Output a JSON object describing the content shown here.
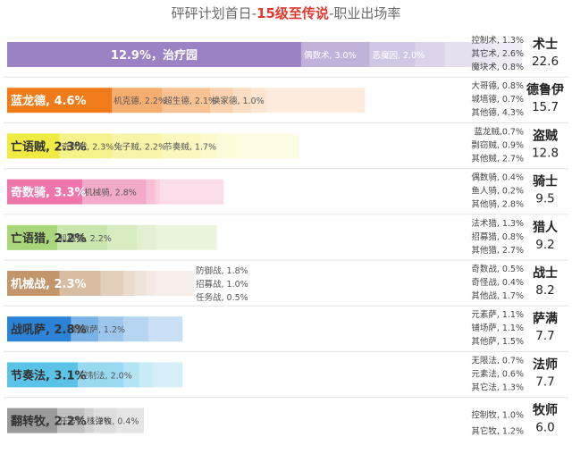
{
  "title": {
    "prefix": "砰砰计划首日-",
    "highlight": "15级至传说",
    "suffix": "-职业出场率"
  },
  "chart_data": {
    "type": "bar",
    "title": "砰砰计划首日-15级至传说-职业出场率",
    "unit": "%",
    "classes": [
      {
        "name": "术士",
        "rate": "22.6",
        "color": "#9b82c4",
        "decks": [
          {
            "label": "12.9%，治疗园",
            "value": 12.9
          },
          {
            "label": "偶数术, 3.0%",
            "value": 3.0
          },
          {
            "label": "恶魔园, 2.0%",
            "value": 2.0
          },
          {
            "label": "",
            "value": 1.3
          },
          {
            "label": "",
            "value": 1.3
          },
          {
            "label": "",
            "value": 0.8
          },
          {
            "label": "",
            "value": 1.3
          }
        ],
        "side": [
          {
            "label": "控制术, 1.3%"
          },
          {
            "label": "其它术, 2.6%"
          },
          {
            "label": "魔块术, 0.8%"
          }
        ]
      },
      {
        "name": "德鲁伊",
        "rate": "15.7",
        "color": "#f07b18",
        "decks": [
          {
            "label": "蓝龙德, 4.6%",
            "value": 4.6
          },
          {
            "label": "机克德, 2.2%",
            "value": 2.2
          },
          {
            "label": "超生德, 2.1%",
            "value": 2.1
          },
          {
            "label": "换家德, 1.0%",
            "value": 1.0
          },
          {
            "label": "",
            "value": 0.8
          },
          {
            "label": "",
            "value": 0.7
          },
          {
            "label": "",
            "value": 4.3
          }
        ],
        "side": [
          {
            "label": "大哥德, 0.8%"
          },
          {
            "label": "城墙德, 0.7%"
          },
          {
            "label": "其他德, 4.3%"
          }
        ]
      },
      {
        "name": "盗贼",
        "rate": "12.8",
        "color": "#f0ea44",
        "decks": [
          {
            "label": "亡语贼, 2.3%",
            "value": 2.3
          },
          {
            "label": "奇数贼, 2.3%",
            "value": 2.3
          },
          {
            "label": "兔子贼, 2.2%",
            "value": 2.2
          },
          {
            "label": "节奏贼, 1.7%",
            "value": 1.7
          },
          {
            "label": "",
            "value": 0.7
          },
          {
            "label": "",
            "value": 0.9
          },
          {
            "label": "",
            "value": 2.7
          }
        ],
        "side": [
          {
            "label": "蓝龙贼,0.7%"
          },
          {
            "label": "剽窃贼, 0.9%"
          },
          {
            "label": "其他贼, 2.7%"
          }
        ]
      },
      {
        "name": "骑士",
        "rate": "9.5",
        "color": "#ee76aa",
        "decks": [
          {
            "label": "奇数骑, 3.3%",
            "value": 3.3
          },
          {
            "label": "机械骑, 2.8%",
            "value": 2.8
          },
          {
            "label": "",
            "value": 0.4
          },
          {
            "label": "",
            "value": 0.2
          },
          {
            "label": "",
            "value": 2.8
          }
        ],
        "side": [
          {
            "label": "偶数骑, 0.4%"
          },
          {
            "label": "鱼人骑, 0.2%"
          },
          {
            "label": "其他骑, 2.8%"
          }
        ]
      },
      {
        "name": "猎人",
        "rate": "9.2",
        "color": "#a9d67a",
        "decks": [
          {
            "label": "亡语猎, 2.2%",
            "value": 2.2
          },
          {
            "label": "机械猎, 2.2%",
            "value": 2.2
          },
          {
            "label": "",
            "value": 1.3
          },
          {
            "label": "",
            "value": 0.8
          },
          {
            "label": "",
            "value": 2.7
          }
        ],
        "side": [
          {
            "label": "法术猎, 1.3%"
          },
          {
            "label": "招募猎, 0.8%"
          },
          {
            "label": "其他猎, 2.7%"
          }
        ]
      },
      {
        "name": "战士",
        "rate": "8.2",
        "color": "#c2956b",
        "decks": [
          {
            "label": "机械战, 2.3%",
            "value": 2.3
          },
          {
            "label": "",
            "value": 1.8
          },
          {
            "label": "",
            "value": 1.0
          },
          {
            "label": "",
            "value": 0.5
          },
          {
            "label": "",
            "value": 0.5
          },
          {
            "label": "",
            "value": 0.4
          },
          {
            "label": "",
            "value": 1.7
          }
        ],
        "inner": [
          {
            "label": "防御战, 1.8%"
          },
          {
            "label": "招募战, 1.0%"
          },
          {
            "label": "任务战, 0.5%"
          }
        ],
        "side": [
          {
            "label": "奇数战, 0.5%"
          },
          {
            "label": "奇怪战, 0.4%"
          },
          {
            "label": "其他战, 1.7%"
          }
        ]
      },
      {
        "name": "萨满",
        "rate": "7.7",
        "color": "#2a83d6",
        "decks": [
          {
            "label": "战吼萨, 2.8%",
            "value": 2.8
          },
          {
            "label": "偶数萨, 1.2%",
            "value": 1.2
          },
          {
            "label": "",
            "value": 1.1
          },
          {
            "label": "",
            "value": 1.1
          },
          {
            "label": "",
            "value": 1.5
          }
        ],
        "side": [
          {
            "label": "元素萨, 1.1%"
          },
          {
            "label": "铺场萨, 1.1%"
          },
          {
            "label": "其他萨, 1.5%"
          }
        ]
      },
      {
        "name": "法师",
        "rate": "7.7",
        "color": "#5cc3e8",
        "decks": [
          {
            "label": "节奏法, 3.1%",
            "value": 3.1
          },
          {
            "label": "控制法, 2.0%",
            "value": 2.0
          },
          {
            "label": "",
            "value": 0.7
          },
          {
            "label": "",
            "value": 0.6
          },
          {
            "label": "",
            "value": 1.3
          }
        ],
        "side": [
          {
            "label": "无限法, 0.7%"
          },
          {
            "label": "元素法, 0.6%"
          },
          {
            "label": "其它法, 1.3%"
          }
        ]
      },
      {
        "name": "牧师",
        "rate": "6.0",
        "color": "#9a9a9a",
        "decks": [
          {
            "label": "翻转牧, 2.2%",
            "value": 2.2
          },
          {
            "label": "任务牧, 1.2%",
            "value": 1.2
          },
          {
            "label": "核弹牧, 0.4%",
            "value": 0.4
          },
          {
            "label": "",
            "value": 1.0
          },
          {
            "label": "",
            "value": 1.2
          }
        ],
        "side": [
          {
            "label": "控制牧, 1.0%"
          },
          {
            "label": "其它牧, 1.2%"
          }
        ]
      }
    ]
  }
}
